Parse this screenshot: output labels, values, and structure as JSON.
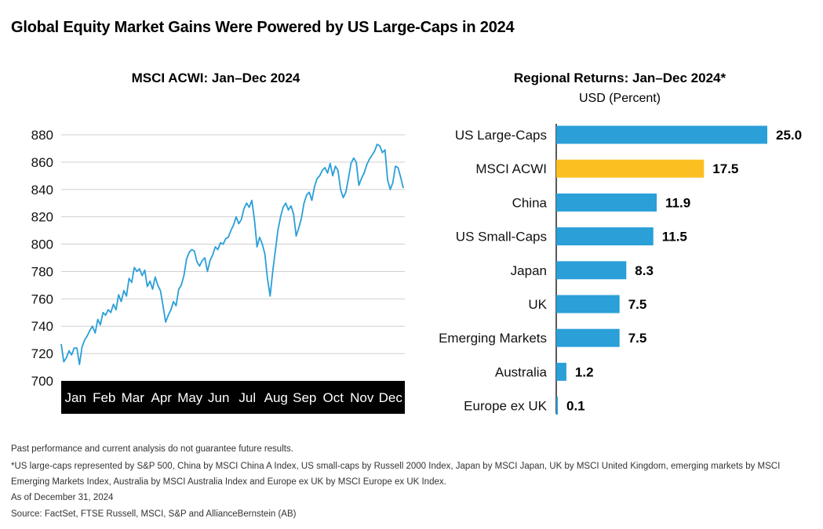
{
  "title": "Global Equity Market Gains Were Powered by US Large-Caps in 2024",
  "colors": {
    "line": "#2a9fd8",
    "bar": "#2a9fd8",
    "highlight": "#fbbf22",
    "grid": "#d0d0d0",
    "axis_band": "#000000"
  },
  "chart_data": [
    {
      "type": "line",
      "title": "MSCI ACWI: Jan–Dec 2024",
      "xlabel": "",
      "ylabel": "",
      "x_ticks": [
        "Jan",
        "Feb",
        "Mar",
        "Apr",
        "May",
        "Jun",
        "Jul",
        "Aug",
        "Sep",
        "Oct",
        "Nov",
        "Dec"
      ],
      "y_ticks": [
        "880",
        "860",
        "840",
        "820",
        "800",
        "780",
        "760",
        "740",
        "720",
        "700"
      ],
      "ylim": [
        700,
        880
      ],
      "grid": true,
      "series": [
        {
          "values": [
            727,
            714,
            717,
            722,
            719,
            724,
            724,
            712,
            725,
            730,
            733,
            737,
            740,
            735,
            745,
            741,
            750,
            748,
            752,
            750,
            756,
            752,
            763,
            758,
            766,
            762,
            775,
            772,
            783,
            780,
            782,
            777,
            781,
            769,
            773,
            767,
            776,
            770,
            766,
            755,
            743,
            748,
            752,
            758,
            755,
            767,
            770,
            777,
            789,
            794,
            796,
            795,
            787,
            784,
            788,
            790,
            780,
            788,
            792,
            798,
            796,
            801,
            800,
            804,
            805,
            810,
            814,
            820,
            815,
            818,
            826,
            830,
            827,
            832,
            818,
            798,
            805,
            800,
            793,
            775,
            762,
            780,
            795,
            810,
            820,
            827,
            830,
            825,
            828,
            822,
            806,
            812,
            819,
            830,
            836,
            838,
            832,
            842,
            848,
            850,
            854,
            856,
            852,
            859,
            850,
            857,
            854,
            840,
            834,
            838,
            848,
            859,
            863,
            860,
            843,
            848,
            852,
            858,
            862,
            865,
            868,
            873,
            872,
            867,
            869,
            847,
            840,
            845,
            857,
            856,
            849,
            841
          ]
        }
      ]
    },
    {
      "type": "bar",
      "orientation": "horizontal",
      "title": "Regional Returns: Jan–Dec 2024*",
      "subtitle": "USD (Percent)",
      "categories": [
        "US Large-Caps",
        "MSCI ACWI",
        "China",
        "US Small-Caps",
        "Japan",
        "UK",
        "Emerging Markets",
        "Australia",
        "Europe ex UK"
      ],
      "values": [
        25.0,
        17.5,
        11.9,
        11.5,
        8.3,
        7.5,
        7.5,
        1.2,
        0.1
      ],
      "data_labels": [
        "25.0",
        "17.5",
        "11.9",
        "11.5",
        "8.3",
        "7.5",
        "7.5",
        "1.2",
        "0.1"
      ],
      "highlight_index": 1,
      "xlim": [
        0,
        25
      ]
    }
  ],
  "footnotes": {
    "disclaimer": "Past performance and current analysis do not guarantee future results.",
    "asterisk_line1": "*US large-caps represented by S&P 500, China by MSCI China A Index, US small-caps by Russell 2000 Index, Japan by MSCI Japan, UK by MSCI United Kingdom, emerging markets by MSCI",
    "asterisk_line2": "Emerging Markets Index, Australia by MSCI Australia Index and Europe ex UK by MSCI Europe ex UK Index.",
    "as_of": "As of December 31, 2024",
    "source": "Source: FactSet, FTSE Russell, MSCI, S&P and AllianceBernstein (AB)"
  }
}
